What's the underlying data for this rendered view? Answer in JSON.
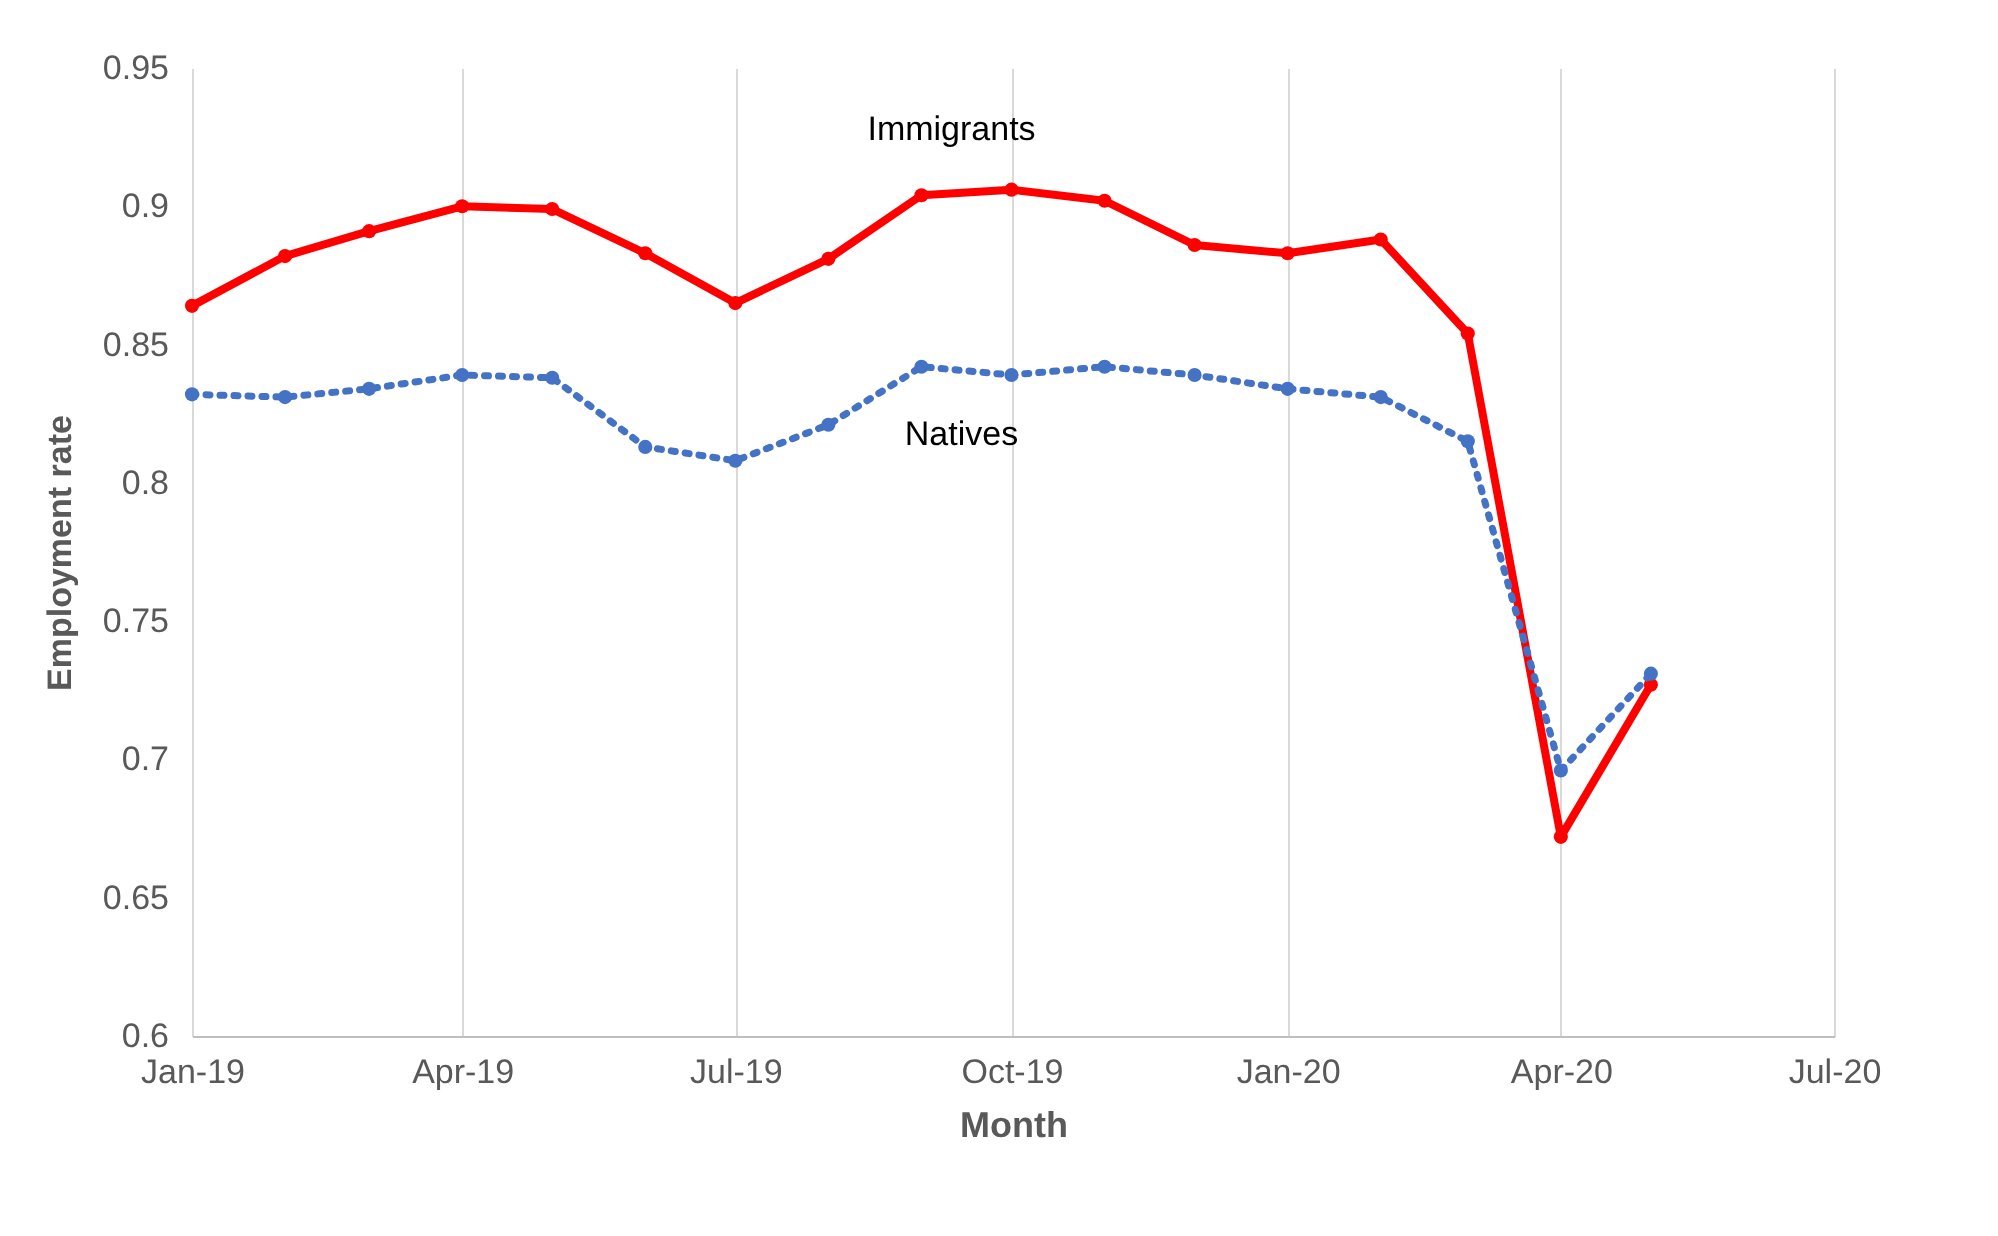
{
  "chart_data": {
    "type": "line",
    "xlabel": "Month",
    "ylabel": "Employment rate",
    "x": [
      "2019-01",
      "2019-02",
      "2019-03",
      "2019-04",
      "2019-05",
      "2019-06",
      "2019-07",
      "2019-08",
      "2019-09",
      "2019-10",
      "2019-11",
      "2019-12",
      "2020-01",
      "2020-02",
      "2020-03",
      "2020-04",
      "2020-05"
    ],
    "series": [
      {
        "name": "Immigrants",
        "color": "#ff0000",
        "line_style": "solid",
        "values": [
          0.864,
          0.882,
          0.891,
          0.9,
          0.899,
          0.883,
          0.865,
          0.881,
          0.904,
          0.906,
          0.902,
          0.886,
          0.883,
          0.888,
          0.854,
          0.672,
          0.727
        ]
      },
      {
        "name": "Natives",
        "color": "#4472c4",
        "line_style": "dotted",
        "values": [
          0.832,
          0.831,
          0.834,
          0.839,
          0.838,
          0.813,
          0.808,
          0.821,
          0.842,
          0.839,
          0.842,
          0.839,
          0.834,
          0.831,
          0.815,
          0.696,
          0.731
        ]
      }
    ],
    "xlim": [
      "2019-01",
      "2020-07"
    ],
    "xticks": [
      {
        "value": "2019-01",
        "label": "Jan-19"
      },
      {
        "value": "2019-04",
        "label": "Apr-19"
      },
      {
        "value": "2019-07",
        "label": "Jul-19"
      },
      {
        "value": "2019-10",
        "label": "Oct-19"
      },
      {
        "value": "2020-01",
        "label": "Jan-20"
      },
      {
        "value": "2020-04",
        "label": "Apr-20"
      },
      {
        "value": "2020-07",
        "label": "Jul-20"
      }
    ],
    "ylim": [
      0.6,
      0.95
    ],
    "yticks": [
      0.6,
      0.65,
      0.7,
      0.75,
      0.8,
      0.85,
      0.9,
      0.95
    ],
    "grid": "x",
    "legend": false,
    "marker": "circle"
  }
}
